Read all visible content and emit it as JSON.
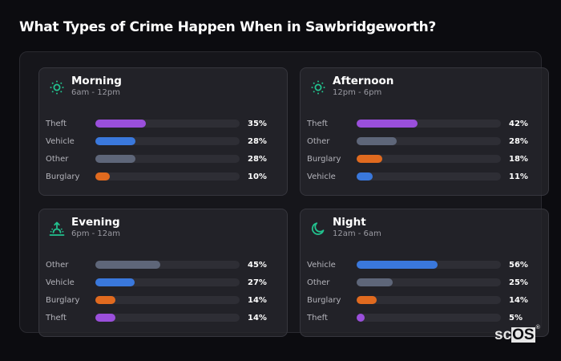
{
  "page": {
    "title": "What Types of Crime Happen When in Sawbridgeworth?"
  },
  "colors": {
    "Theft": "#9a4fdb",
    "Vehicle": "#3a78dc",
    "Other": "#5e6679",
    "Burglary": "#e06a1f",
    "icon_accent": "#22c28e",
    "track": "#2e2e35"
  },
  "cards": [
    {
      "name": "Morning",
      "range": "6am - 12pm",
      "icon": "sun-icon",
      "rows": [
        {
          "label": "Theft",
          "value": 35,
          "pct": "35%"
        },
        {
          "label": "Vehicle",
          "value": 28,
          "pct": "28%"
        },
        {
          "label": "Other",
          "value": 28,
          "pct": "28%"
        },
        {
          "label": "Burglary",
          "value": 10,
          "pct": "10%"
        }
      ]
    },
    {
      "name": "Afternoon",
      "range": "12pm - 6pm",
      "icon": "sun-icon",
      "rows": [
        {
          "label": "Theft",
          "value": 42,
          "pct": "42%"
        },
        {
          "label": "Other",
          "value": 28,
          "pct": "28%"
        },
        {
          "label": "Burglary",
          "value": 18,
          "pct": "18%"
        },
        {
          "label": "Vehicle",
          "value": 11,
          "pct": "11%"
        }
      ]
    },
    {
      "name": "Evening",
      "range": "6pm - 12am",
      "icon": "sunset-icon",
      "rows": [
        {
          "label": "Other",
          "value": 45,
          "pct": "45%"
        },
        {
          "label": "Vehicle",
          "value": 27,
          "pct": "27%"
        },
        {
          "label": "Burglary",
          "value": 14,
          "pct": "14%"
        },
        {
          "label": "Theft",
          "value": 14,
          "pct": "14%"
        }
      ]
    },
    {
      "name": "Night",
      "range": "12am - 6am",
      "icon": "moon-icon",
      "rows": [
        {
          "label": "Vehicle",
          "value": 56,
          "pct": "56%"
        },
        {
          "label": "Other",
          "value": 25,
          "pct": "25%"
        },
        {
          "label": "Burglary",
          "value": 14,
          "pct": "14%"
        },
        {
          "label": "Theft",
          "value": 5,
          "pct": "5%"
        }
      ]
    }
  ],
  "logo": {
    "sc": "sc",
    "os": "OS",
    "reg": "®"
  }
}
